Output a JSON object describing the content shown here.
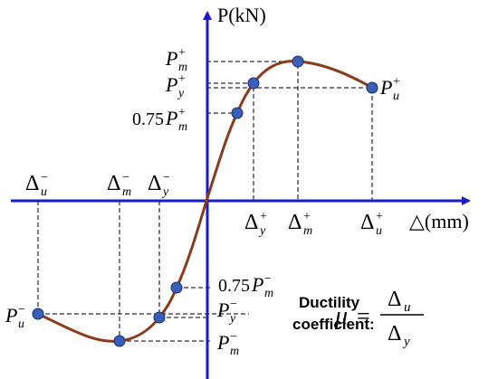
{
  "axes": {
    "y_label": "P(kN)",
    "x_label": "△(mm)"
  },
  "labels": [
    {
      "base": "P",
      "sub": "m",
      "sup": "+"
    },
    {
      "base": "P",
      "sub": "y",
      "sup": "+"
    },
    {
      "coef": "0.75",
      "base": "P",
      "sub": "m",
      "sup": "+"
    },
    {
      "base": "P",
      "sub": "u",
      "sup": "+"
    },
    {
      "base": "Δ",
      "sub": "u",
      "sup": "−"
    },
    {
      "base": "Δ",
      "sub": "m",
      "sup": "−"
    },
    {
      "base": "Δ",
      "sub": "y",
      "sup": "−"
    },
    {
      "base": "Δ",
      "sub": "y",
      "sup": "+"
    },
    {
      "base": "Δ",
      "sub": "m",
      "sup": "+"
    },
    {
      "base": "Δ",
      "sub": "u",
      "sup": "+"
    },
    {
      "coef": "0.75",
      "base": "P",
      "sub": "m",
      "sup": "−"
    },
    {
      "base": "P",
      "sub": "u",
      "sup": "−"
    },
    {
      "base": "P",
      "sub": "y",
      "sup": "−"
    },
    {
      "base": "P",
      "sub": "m",
      "sup": "−"
    }
  ],
  "formula": {
    "caption_line1": "Ductility",
    "caption_line2": "coefficient:",
    "symbol": "μ",
    "equals": "=",
    "numerator": {
      "base": "Δ",
      "sub": "u"
    },
    "denominator": {
      "base": "Δ",
      "sub": "y"
    }
  }
}
